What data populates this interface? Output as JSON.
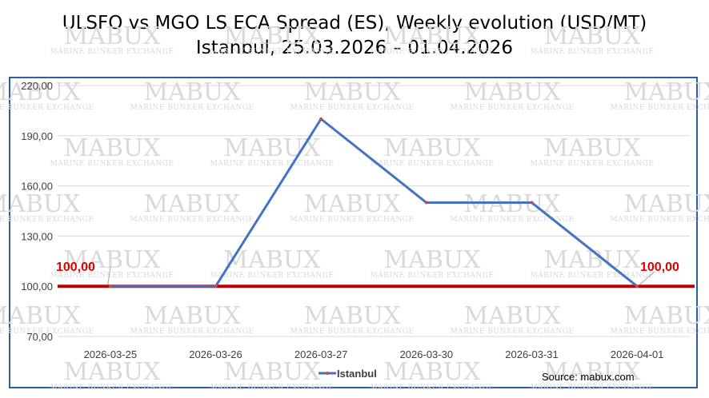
{
  "title_line1": "ULSFO vs MGO LS ECA Spread (ES), Weekly evolution (USD/MT)",
  "title_line2": "Istanbul, 25.03.2026 – 01.04.2026",
  "watermark": {
    "name": "MABUX",
    "tagline": "MARINE BUNKER EXCHANGE"
  },
  "source": "Source: mabux.com",
  "colors": {
    "series": "#4472c4",
    "reference": "#c00000",
    "marker": "#c0504d",
    "frame": "#2e5e9e"
  },
  "chart_data": {
    "type": "line",
    "categories": [
      "2026-03-25",
      "2026-03-26",
      "2026-03-27",
      "2026-03-30",
      "2026-03-31",
      "2026-04-01"
    ],
    "series": [
      {
        "name": "Istanbul",
        "values": [
          100,
          100,
          200,
          150,
          150,
          100
        ]
      }
    ],
    "reference_line": {
      "value": 100,
      "label_left": "100,00",
      "label_right": "100,00"
    },
    "yticks": [
      "70,00",
      "100,00",
      "130,00",
      "160,00",
      "190,00",
      "220,00"
    ],
    "ylim": [
      70,
      220
    ],
    "grid": "horizontal",
    "legend": "bottom-center"
  }
}
